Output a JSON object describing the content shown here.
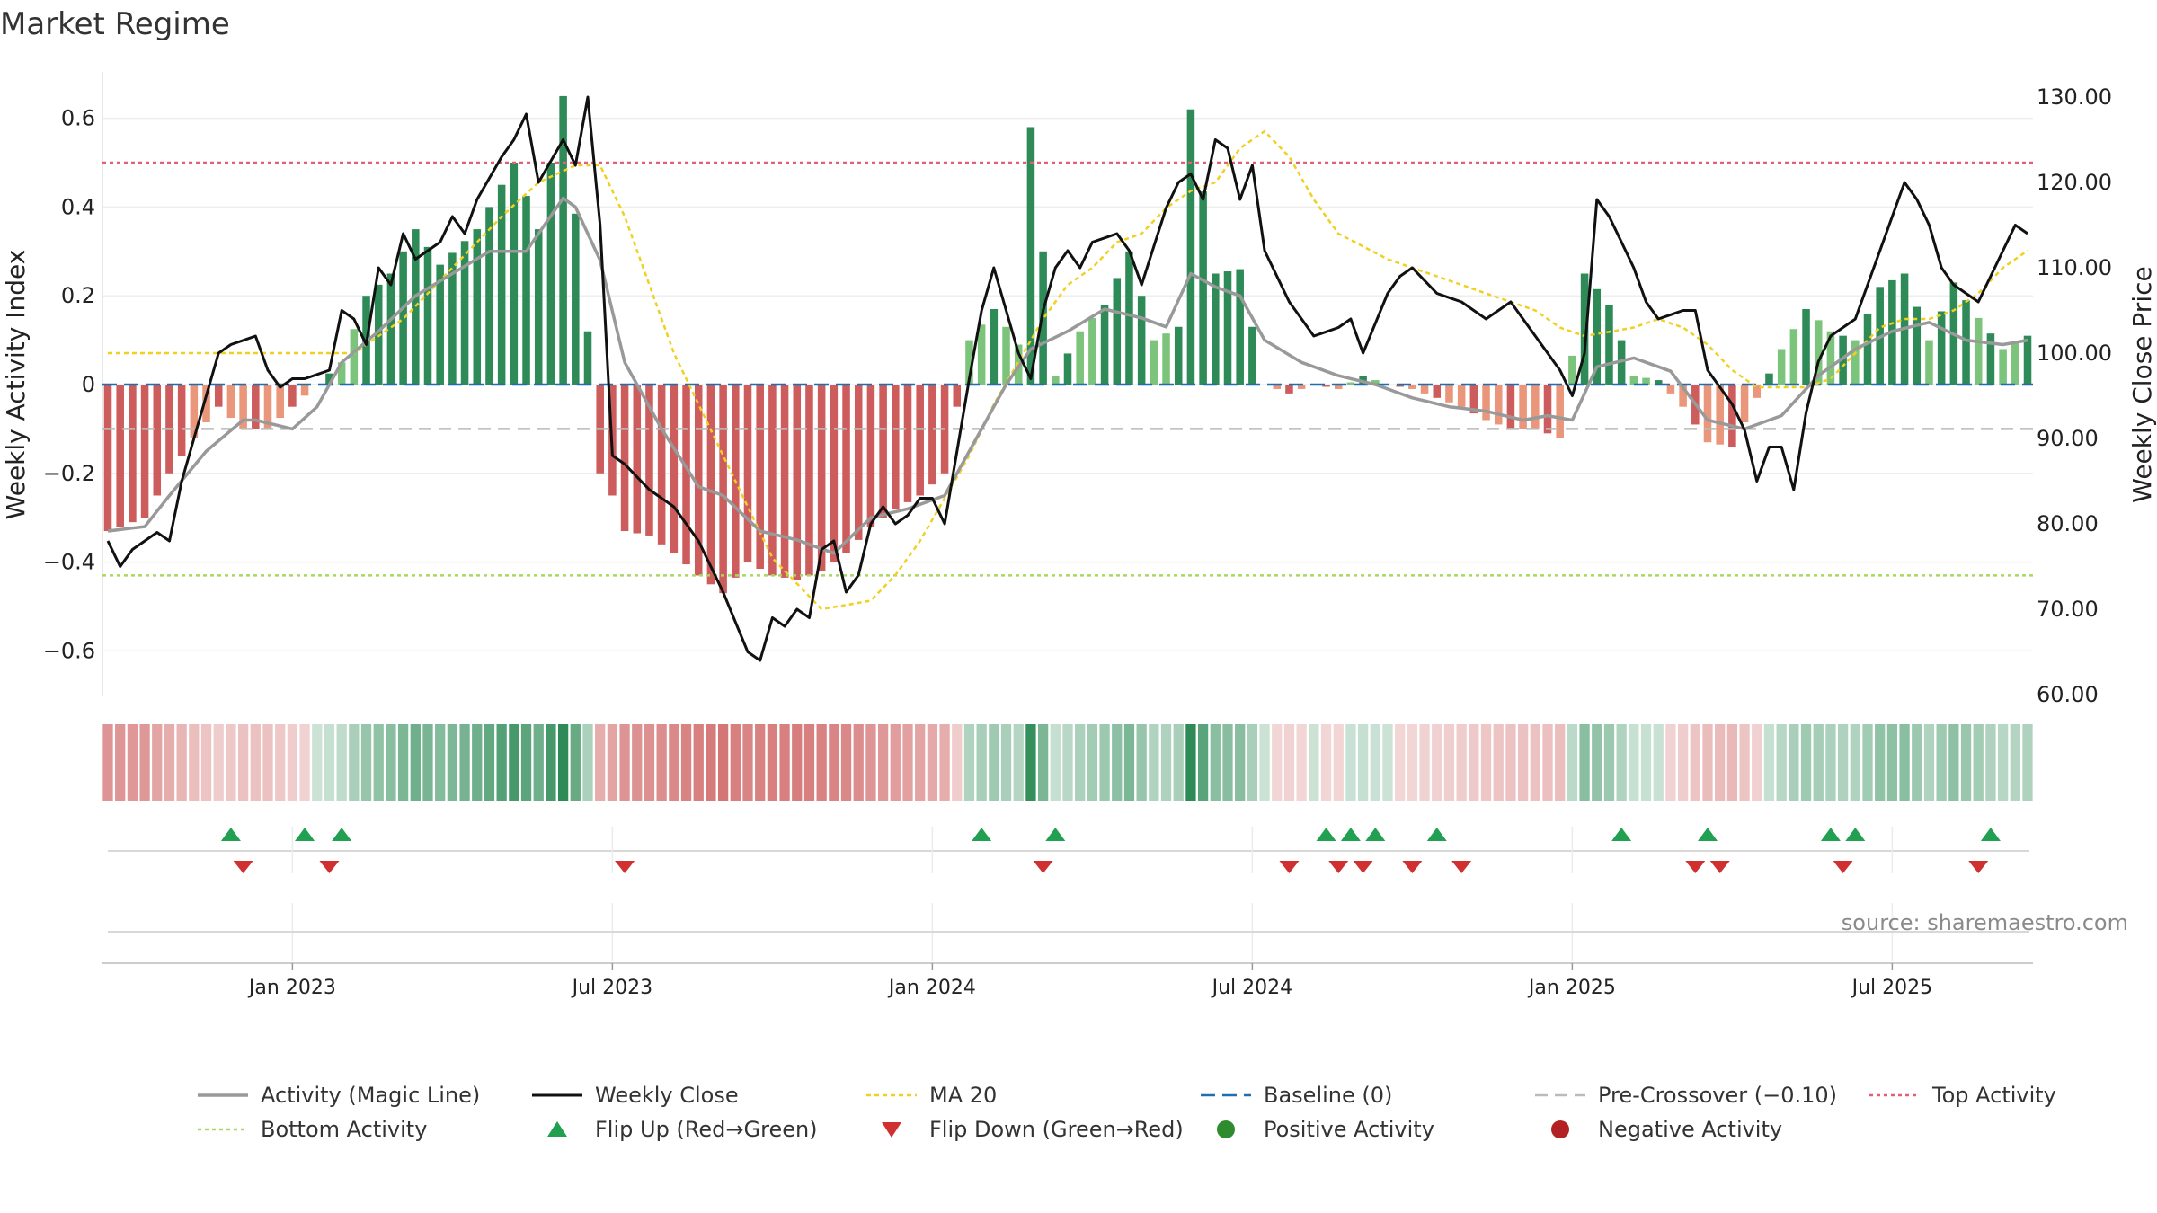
{
  "chart_data": {
    "type": "bar+line",
    "title": "Market Regime",
    "ylabel_left": "Weekly Activity Index",
    "ylabel_right": "Weekly Close Price",
    "yticks_left": [
      "0.6",
      "0.4",
      "0.2",
      "0",
      "−0.2",
      "−0.4",
      "−0.6"
    ],
    "yticks_left_values": [
      0.6,
      0.4,
      0.2,
      0,
      -0.2,
      -0.4,
      -0.6
    ],
    "ylim_left": [
      -0.7,
      0.7
    ],
    "yticks_right": [
      "130.00",
      "120.00",
      "110.00",
      "100.00",
      "90.00",
      "80.00",
      "70.00",
      "60.00"
    ],
    "yticks_right_values": [
      130,
      120,
      110,
      100,
      90,
      80,
      70,
      60
    ],
    "ylim_right": [
      60,
      132
    ],
    "xticks": [
      {
        "label": "Jan 2023",
        "week": 15
      },
      {
        "label": "Jul 2023",
        "week": 41
      },
      {
        "label": "Jan 2024",
        "week": 67
      },
      {
        "label": "Jul 2024",
        "week": 93
      },
      {
        "label": "Jan 2025",
        "week": 119
      },
      {
        "label": "Jul 2025",
        "week": 145
      }
    ],
    "week_count": 157,
    "top_activity": 0.5,
    "bottom_activity": -0.43,
    "pre_crossover": -0.1,
    "baseline": 0,
    "activity_key": {
      "weeks": [
        0,
        3,
        5,
        7,
        9,
        11,
        13,
        15,
        17,
        19,
        21,
        23,
        25,
        27,
        30,
        33,
        35,
        37,
        39,
        40,
        41,
        42,
        44,
        46,
        48,
        50,
        52,
        54,
        56,
        58,
        60,
        62,
        64,
        66,
        68,
        70,
        72,
        74,
        75,
        77,
        79,
        81,
        83,
        85,
        87,
        88,
        90,
        92,
        94,
        96,
        98,
        100,
        102,
        104,
        106,
        108,
        110,
        112,
        114,
        116,
        118,
        120,
        122,
        124,
        126,
        128,
        130,
        132,
        134,
        136,
        138,
        140,
        142,
        144,
        146,
        148,
        150,
        152,
        154,
        156
      ],
      "values": [
        -0.33,
        -0.3,
        -0.2,
        -0.12,
        -0.05,
        -0.1,
        -0.1,
        -0.05,
        0.0,
        0.05,
        0.2,
        0.25,
        0.35,
        0.27,
        0.35,
        0.5,
        0.35,
        0.65,
        0.12,
        -0.2,
        -0.25,
        -0.33,
        -0.34,
        -0.38,
        -0.43,
        -0.47,
        -0.4,
        -0.43,
        -0.44,
        -0.42,
        -0.38,
        -0.32,
        -0.28,
        -0.25,
        -0.2,
        0.1,
        0.17,
        0.09,
        0.58,
        0.02,
        0.12,
        0.18,
        0.3,
        0.1,
        0.13,
        0.62,
        0.25,
        0.26,
        0.0,
        -0.02,
        0.0,
        -0.01,
        0.02,
        0.0,
        -0.01,
        -0.03,
        -0.05,
        -0.08,
        -0.1,
        -0.1,
        -0.12,
        0.25,
        0.18,
        0.02,
        0.01,
        -0.05,
        -0.13,
        -0.14,
        -0.03,
        0.08,
        0.17,
        0.12,
        0.1,
        0.22,
        0.25,
        0.1,
        0.23,
        0.15,
        0.08,
        0.11
      ]
    },
    "magic_line_key": {
      "weeks": [
        0,
        3,
        5,
        8,
        11,
        12,
        15,
        17,
        19,
        22,
        25,
        28,
        31,
        34,
        37,
        38,
        40,
        42,
        45,
        48,
        50,
        53,
        56,
        59,
        62,
        65,
        68,
        71,
        73,
        75,
        78,
        81,
        84,
        86,
        88,
        90,
        92,
        94,
        97,
        100,
        103,
        106,
        109,
        112,
        115,
        117,
        119,
        121,
        124,
        127,
        130,
        133,
        136,
        139,
        142,
        145,
        148,
        151,
        154,
        156
      ],
      "values": [
        -0.33,
        -0.32,
        -0.25,
        -0.15,
        -0.08,
        -0.08,
        -0.1,
        -0.05,
        0.05,
        0.12,
        0.2,
        0.25,
        0.3,
        0.3,
        0.42,
        0.4,
        0.28,
        0.05,
        -0.1,
        -0.23,
        -0.25,
        -0.33,
        -0.35,
        -0.38,
        -0.3,
        -0.28,
        -0.25,
        -0.1,
        0.0,
        0.08,
        0.12,
        0.17,
        0.15,
        0.13,
        0.25,
        0.22,
        0.2,
        0.1,
        0.05,
        0.02,
        0.0,
        -0.03,
        -0.05,
        -0.06,
        -0.08,
        -0.07,
        -0.08,
        0.04,
        0.06,
        0.03,
        -0.08,
        -0.1,
        -0.07,
        0.02,
        0.08,
        0.12,
        0.14,
        0.1,
        0.09,
        0.1
      ]
    },
    "weekly_close_key": {
      "weeks": [
        0,
        1,
        2,
        4,
        5,
        6,
        7,
        9,
        10,
        12,
        13,
        14,
        15,
        16,
        18,
        19,
        20,
        21,
        22,
        23,
        24,
        25,
        27,
        28,
        29,
        30,
        32,
        33,
        34,
        35,
        37,
        38,
        39,
        40,
        41,
        42,
        44,
        46,
        48,
        50,
        52,
        53,
        54,
        55,
        56,
        57,
        58,
        59,
        60,
        61,
        62,
        63,
        64,
        65,
        66,
        67,
        68,
        70,
        71,
        72,
        73,
        74,
        75,
        76,
        77,
        78,
        79,
        80,
        82,
        83,
        84,
        86,
        87,
        88,
        89,
        90,
        91,
        92,
        93,
        94,
        96,
        98,
        100,
        101,
        102,
        104,
        105,
        106,
        108,
        110,
        112,
        114,
        116,
        118,
        119,
        120,
        121,
        122,
        124,
        125,
        126,
        128,
        129,
        130,
        131,
        132,
        133,
        134,
        135,
        136,
        137,
        138,
        139,
        140,
        142,
        143,
        144,
        145,
        146,
        147,
        148,
        149,
        150,
        152,
        154,
        155,
        156
      ],
      "values": [
        78,
        75,
        77,
        79,
        78,
        85,
        90,
        100,
        101,
        102,
        98,
        96,
        97,
        97,
        98,
        105,
        104,
        101,
        110,
        108,
        114,
        111,
        113,
        116,
        114,
        118,
        123,
        125,
        128,
        120,
        125,
        122,
        130,
        115,
        88,
        87,
        84,
        82,
        78,
        72,
        65,
        64,
        69,
        68,
        70,
        69,
        77,
        78,
        72,
        74,
        80,
        82,
        80,
        81,
        83,
        83,
        80,
        97,
        105,
        110,
        105,
        100,
        97,
        105,
        110,
        112,
        110,
        113,
        114,
        112,
        108,
        117,
        120,
        121,
        118,
        125,
        124,
        118,
        122,
        112,
        106,
        102,
        103,
        104,
        100,
        107,
        109,
        110,
        107,
        106,
        104,
        106,
        102,
        98,
        95,
        100,
        118,
        116,
        110,
        106,
        104,
        105,
        105,
        98,
        96,
        94,
        91,
        85,
        89,
        89,
        84,
        93,
        99,
        102,
        104,
        108,
        112,
        116,
        120,
        118,
        115,
        110,
        108,
        106,
        112,
        115,
        114
      ]
    },
    "ma20_key": {
      "weeks": [
        0,
        5,
        10,
        15,
        18,
        20,
        24,
        28,
        32,
        35,
        38,
        40,
        42,
        44,
        46,
        48,
        50,
        52,
        54,
        56,
        58,
        60,
        62,
        64,
        66,
        68,
        70,
        72,
        74,
        76,
        78,
        80,
        82,
        84,
        86,
        88,
        90,
        92,
        94,
        96,
        98,
        100,
        104,
        108,
        112,
        116,
        118,
        120,
        124,
        126,
        128,
        130,
        132,
        134,
        136,
        138,
        140,
        142,
        144,
        146,
        148,
        150,
        152,
        154,
        156
      ],
      "values": [
        100,
        100,
        100,
        100,
        100,
        100,
        104,
        110,
        116,
        120,
        122,
        122,
        116,
        108,
        100,
        94,
        88,
        82,
        76,
        73,
        70,
        70.5,
        71,
        74,
        78,
        83,
        88,
        94,
        99,
        104,
        108,
        110,
        113,
        114,
        117,
        119,
        120,
        124,
        126,
        123,
        118,
        114,
        111,
        109,
        107,
        105,
        103,
        102,
        103,
        104,
        103,
        101,
        98,
        96,
        96,
        96,
        97,
        100,
        103,
        104,
        104,
        105,
        107,
        110,
        112
      ]
    },
    "flip_up_weeks": [
      10,
      16,
      19,
      71,
      77,
      99,
      101,
      103,
      108,
      123,
      130,
      140,
      142,
      153
    ],
    "flip_down_weeks": [
      11,
      18,
      42,
      76,
      96,
      100,
      102,
      106,
      110,
      129,
      131,
      141,
      152
    ],
    "legend": [
      {
        "label": "Activity (Magic Line)",
        "style": "magic"
      },
      {
        "label": "Weekly Close",
        "style": "close"
      },
      {
        "label": "MA 20",
        "style": "ma"
      },
      {
        "label": "Baseline (0)",
        "style": "baseline"
      },
      {
        "label": "Pre-Crossover (−0.10)",
        "style": "precross"
      },
      {
        "label": "Top Activity",
        "style": "top"
      },
      {
        "label": "Bottom Activity",
        "style": "bottom"
      },
      {
        "label": "Flip Up (Red→Green)",
        "style": "flipup"
      },
      {
        "label": "Flip Down (Green→Red)",
        "style": "flipdown"
      },
      {
        "label": "Positive Activity",
        "style": "pos"
      },
      {
        "label": "Negative Activity",
        "style": "neg"
      }
    ],
    "source": "source: sharemaestro.com"
  },
  "colors": {
    "pos_strong": "#2e8b57",
    "pos_light": "#7cc47c",
    "neg_strong": "#cd5c5c",
    "neg_light": "#e9967a",
    "magic": "#999999",
    "close": "#111111",
    "ma": "#f0d020",
    "baseline": "#1f6fb0",
    "precross": "#bbbbbb",
    "top": "#e0607a",
    "bottom": "#a8d860",
    "flipup": "#20a050",
    "flipdown": "#d03030",
    "posdot": "#2e8b2e",
    "negdot": "#b22222"
  }
}
